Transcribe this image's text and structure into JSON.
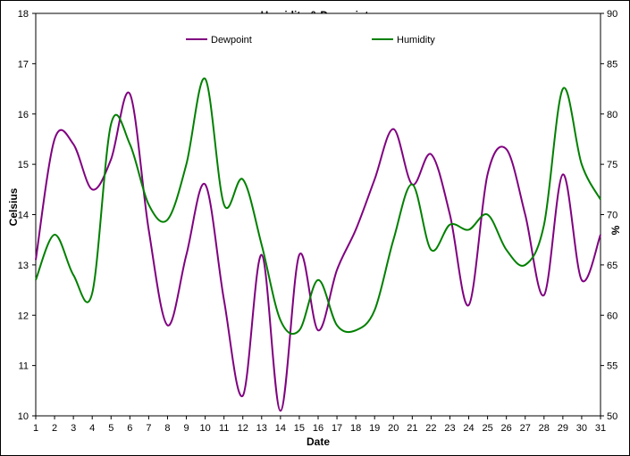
{
  "chart_data": {
    "type": "line",
    "title": "Humidity & Dewpoint",
    "xlabel": "Date",
    "ylabel": "Celsius",
    "y2label": "%",
    "xlim": [
      1,
      31
    ],
    "ylim": [
      10,
      18
    ],
    "y2lim": [
      50,
      90
    ],
    "x_ticks": [
      "1",
      "2",
      "3",
      "4",
      "5",
      "6",
      "7",
      "8",
      "9",
      "10",
      "11",
      "12",
      "13",
      "14",
      "15",
      "16",
      "17",
      "18",
      "19",
      "20",
      "21",
      "22",
      "23",
      "24",
      "25",
      "26",
      "27",
      "28",
      "29",
      "30",
      "31"
    ],
    "y_ticks": [
      "10",
      "11",
      "12",
      "13",
      "14",
      "15",
      "16",
      "17",
      "18"
    ],
    "y2_ticks": [
      "50",
      "55",
      "60",
      "65",
      "70",
      "75",
      "80",
      "85",
      "90"
    ],
    "legend_position": "top",
    "grid": false,
    "series": [
      {
        "name": "Dewpoint",
        "axis": "left",
        "color": "#800080",
        "x": [
          1,
          2,
          3,
          4,
          5,
          6,
          7,
          8,
          9,
          10,
          11,
          12,
          13,
          14,
          15,
          16,
          17,
          18,
          19,
          20,
          21,
          22,
          23,
          24,
          25,
          26,
          27,
          28,
          29,
          30,
          31
        ],
        "values": [
          13.1,
          15.5,
          15.4,
          14.5,
          15.1,
          16.4,
          13.7,
          11.8,
          13.2,
          14.6,
          12.3,
          10.4,
          13.2,
          10.1,
          13.2,
          11.7,
          12.9,
          13.7,
          14.7,
          15.7,
          14.6,
          15.2,
          14.0,
          12.2,
          14.8,
          15.3,
          14.0,
          12.4,
          14.8,
          12.7,
          13.6
        ]
      },
      {
        "name": "Humidity",
        "axis": "right",
        "color": "#008000",
        "x": [
          1,
          2,
          3,
          4,
          5,
          6,
          7,
          8,
          9,
          10,
          11,
          12,
          13,
          14,
          15,
          16,
          17,
          18,
          19,
          20,
          21,
          22,
          23,
          24,
          25,
          26,
          27,
          28,
          29,
          30,
          31
        ],
        "values": [
          63.5,
          68,
          64,
          62.2,
          79,
          77,
          71,
          69.5,
          75,
          83.5,
          71,
          73.5,
          67,
          59.5,
          58.5,
          63.5,
          59,
          58.5,
          60.5,
          67.5,
          73,
          66.5,
          69,
          68.5,
          70,
          66.5,
          65,
          69,
          82.5,
          75,
          71.5
        ]
      }
    ]
  }
}
